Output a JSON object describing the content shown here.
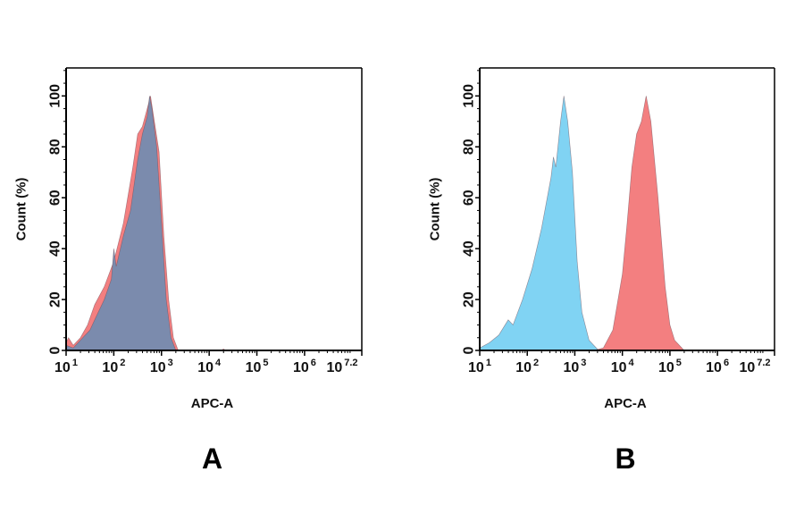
{
  "chart_data": [
    {
      "type": "area",
      "panel_label": "A",
      "xlabel": "APC-A",
      "ylabel": "Count  (%)",
      "x_scale": "log10",
      "xlim_log10": [
        1,
        7.2
      ],
      "ylim": [
        0,
        111
      ],
      "x_ticks": {
        "base": "10",
        "exponents": [
          "1",
          "2",
          "3",
          "4",
          "5",
          "6",
          "7.2"
        ],
        "log10_values": [
          1,
          2,
          3,
          4,
          5,
          6,
          7.2
        ]
      },
      "y_ticks": [
        0,
        20,
        40,
        60,
        80,
        100
      ],
      "grid": false,
      "colors": {
        "red": "#f37f80",
        "blue": "#80d3f3",
        "overlap": "#7b8bad"
      },
      "series": [
        {
          "color": "red",
          "points_log10x_y": [
            [
              1.0,
              3
            ],
            [
              1.05,
              5
            ],
            [
              1.15,
              2
            ],
            [
              1.3,
              5
            ],
            [
              1.45,
              10
            ],
            [
              1.6,
              18
            ],
            [
              1.8,
              25
            ],
            [
              2.0,
              35
            ],
            [
              2.2,
              50
            ],
            [
              2.4,
              72
            ],
            [
              2.5,
              85
            ],
            [
              2.6,
              88
            ],
            [
              2.7,
              95
            ],
            [
              2.77,
              100
            ],
            [
              2.85,
              90
            ],
            [
              2.95,
              78
            ],
            [
              3.05,
              45
            ],
            [
              3.15,
              20
            ],
            [
              3.25,
              5
            ],
            [
              3.35,
              0
            ],
            [
              4.25,
              0
            ],
            [
              4.3,
              0.6
            ],
            [
              4.35,
              0
            ]
          ]
        },
        {
          "color": "overlap",
          "points_log10x_y": [
            [
              1.0,
              2
            ],
            [
              1.15,
              1
            ],
            [
              1.3,
              4
            ],
            [
              1.5,
              8
            ],
            [
              1.6,
              12
            ],
            [
              1.8,
              20
            ],
            [
              1.95,
              28
            ],
            [
              2.0,
              40
            ],
            [
              2.05,
              33
            ],
            [
              2.2,
              45
            ],
            [
              2.35,
              55
            ],
            [
              2.5,
              75
            ],
            [
              2.6,
              85
            ],
            [
              2.7,
              92
            ],
            [
              2.75,
              100
            ],
            [
              2.8,
              95
            ],
            [
              2.9,
              80
            ],
            [
              3.0,
              50
            ],
            [
              3.1,
              20
            ],
            [
              3.2,
              5
            ],
            [
              3.3,
              0
            ]
          ]
        }
      ]
    },
    {
      "type": "area",
      "panel_label": "B",
      "xlabel": "APC-A",
      "ylabel": "Count  (%)",
      "x_scale": "log10",
      "xlim_log10": [
        1,
        7.2
      ],
      "ylim": [
        0,
        111
      ],
      "x_ticks": {
        "base": "10",
        "exponents": [
          "1",
          "2",
          "3",
          "4",
          "5",
          "6",
          "7.2"
        ],
        "log10_values": [
          1,
          2,
          3,
          4,
          5,
          6,
          7.2
        ]
      },
      "y_ticks": [
        0,
        20,
        40,
        60,
        80,
        100
      ],
      "grid": false,
      "colors": {
        "red": "#f37f80",
        "blue": "#80d3f3"
      },
      "series": [
        {
          "color": "blue",
          "points_log10x_y": [
            [
              1.0,
              1
            ],
            [
              1.2,
              3
            ],
            [
              1.4,
              6
            ],
            [
              1.6,
              12
            ],
            [
              1.7,
              10
            ],
            [
              1.9,
              20
            ],
            [
              2.1,
              32
            ],
            [
              2.3,
              48
            ],
            [
              2.5,
              68
            ],
            [
              2.55,
              76
            ],
            [
              2.6,
              72
            ],
            [
              2.7,
              90
            ],
            [
              2.77,
              100
            ],
            [
              2.85,
              90
            ],
            [
              2.95,
              70
            ],
            [
              3.05,
              35
            ],
            [
              3.15,
              15
            ],
            [
              3.3,
              4
            ],
            [
              3.5,
              0
            ]
          ]
        },
        {
          "color": "red",
          "points_log10x_y": [
            [
              3.4,
              0
            ],
            [
              3.6,
              1
            ],
            [
              3.8,
              8
            ],
            [
              4.0,
              30
            ],
            [
              4.1,
              50
            ],
            [
              4.2,
              72
            ],
            [
              4.3,
              85
            ],
            [
              4.4,
              90
            ],
            [
              4.5,
              100
            ],
            [
              4.6,
              90
            ],
            [
              4.75,
              60
            ],
            [
              4.9,
              25
            ],
            [
              5.0,
              10
            ],
            [
              5.1,
              4
            ],
            [
              5.3,
              0
            ]
          ]
        }
      ]
    }
  ]
}
